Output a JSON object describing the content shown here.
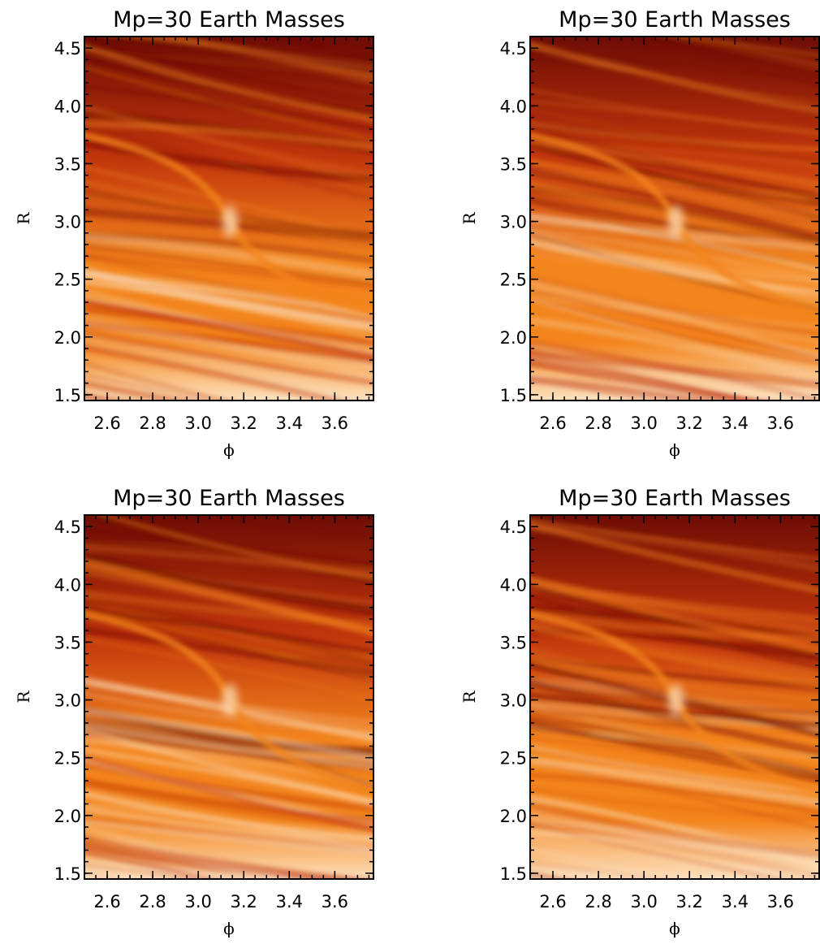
{
  "chart_data": [
    {
      "type": "heatmap",
      "title": "Mp=30 Earth Masses",
      "xlabel": "ϕ",
      "ylabel": "R",
      "xlim": [
        2.5,
        3.77
      ],
      "ylim": [
        1.45,
        4.6
      ],
      "xticks": [
        "2.6",
        "2.8",
        "3.0",
        "3.2",
        "3.4",
        "3.6"
      ],
      "yticks": [
        "1.5",
        "2.0",
        "2.5",
        "3.0",
        "3.5",
        "4.0",
        "4.5"
      ],
      "colormap": [
        "#6e0d05",
        "#c0350c",
        "#f3851d",
        "#fde2bf"
      ]
    },
    {
      "type": "heatmap",
      "title": "Mp=30 Earth Masses",
      "xlabel": "ϕ",
      "ylabel": "R",
      "xlim": [
        2.5,
        3.77
      ],
      "ylim": [
        1.45,
        4.6
      ],
      "xticks": [
        "2.6",
        "2.8",
        "3.0",
        "3.2",
        "3.4",
        "3.6"
      ],
      "yticks": [
        "1.5",
        "2.0",
        "2.5",
        "3.0",
        "3.5",
        "4.0",
        "4.5"
      ],
      "colormap": [
        "#6e0d05",
        "#c0350c",
        "#f3851d",
        "#fde2bf"
      ]
    },
    {
      "type": "heatmap",
      "title": "Mp=30 Earth Masses",
      "xlabel": "ϕ",
      "ylabel": "R",
      "xlim": [
        2.5,
        3.77
      ],
      "ylim": [
        1.45,
        4.6
      ],
      "xticks": [
        "2.6",
        "2.8",
        "3.0",
        "3.2",
        "3.4",
        "3.6"
      ],
      "yticks": [
        "1.5",
        "2.0",
        "2.5",
        "3.0",
        "3.5",
        "4.0",
        "4.5"
      ],
      "colormap": [
        "#6e0d05",
        "#c0350c",
        "#f3851d",
        "#fde2bf"
      ]
    },
    {
      "type": "heatmap",
      "title": "Mp=30 Earth Masses",
      "xlabel": "ϕ",
      "ylabel": "R",
      "xlim": [
        2.5,
        3.77
      ],
      "ylim": [
        1.45,
        4.6
      ],
      "xticks": [
        "2.6",
        "2.8",
        "3.0",
        "3.2",
        "3.4",
        "3.6"
      ],
      "yticks": [
        "1.5",
        "2.0",
        "2.5",
        "3.0",
        "3.5",
        "4.0",
        "4.5"
      ],
      "colormap": [
        "#6e0d05",
        "#c0350c",
        "#f3851d",
        "#fde2bf"
      ]
    }
  ]
}
